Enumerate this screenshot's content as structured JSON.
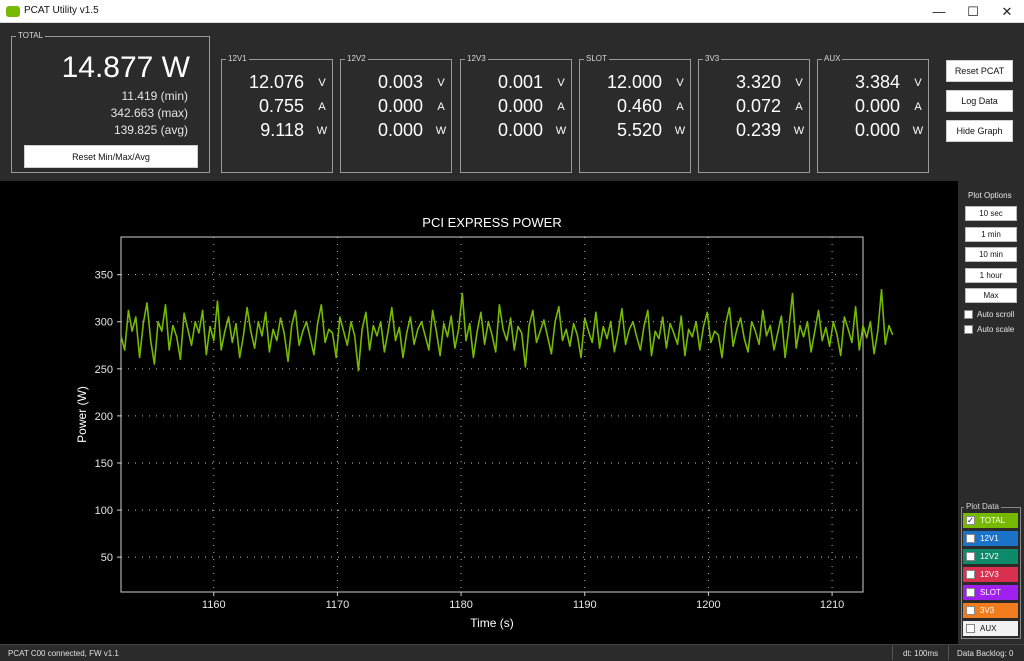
{
  "window": {
    "title": "PCAT Utility v1.5",
    "min_label": "—",
    "max_label": "☐",
    "close_label": "✕"
  },
  "total": {
    "label": "TOTAL",
    "power": "14.877 W",
    "min": "11.419 (min)",
    "max": "342.663 (max)",
    "avg": "139.825 (avg)",
    "reset_label": "Reset Min/Max/Avg"
  },
  "rails": [
    {
      "name": "12V1",
      "v": "12.076",
      "a": "0.755",
      "w": "9.118"
    },
    {
      "name": "12V2",
      "v": "0.003",
      "a": "0.000",
      "w": "0.000"
    },
    {
      "name": "12V3",
      "v": "0.001",
      "a": "0.000",
      "w": "0.000"
    },
    {
      "name": "SLOT",
      "v": "12.000",
      "a": "0.460",
      "w": "5.520"
    },
    {
      "name": "3V3",
      "v": "3.320",
      "a": "0.072",
      "w": "0.239"
    },
    {
      "name": "AUX",
      "v": "3.384",
      "a": "0.000",
      "w": "0.000"
    }
  ],
  "units": {
    "v": "V",
    "a": "A",
    "w": "W"
  },
  "actions": {
    "reset_pcat": "Reset PCAT",
    "log_data": "Log Data",
    "hide_graph": "Hide Graph"
  },
  "plot_options": {
    "title": "Plot Options",
    "buttons": [
      "10 sec",
      "1 min",
      "10 min",
      "1 hour",
      "Max"
    ],
    "auto_scroll": "Auto scroll",
    "auto_scale": "Auto scale"
  },
  "plot_data": {
    "title": "Plot Data",
    "items": [
      {
        "label": "TOTAL",
        "color": "#76b900",
        "checked": true,
        "text_color": "#ffffff"
      },
      {
        "label": "12V1",
        "color": "#1a73c8",
        "checked": false,
        "text_color": "#ffffff"
      },
      {
        "label": "12V2",
        "color": "#0e8a6a",
        "checked": false,
        "text_color": "#ffffff"
      },
      {
        "label": "12V3",
        "color": "#d9304f",
        "checked": false,
        "text_color": "#ffffff"
      },
      {
        "label": "SLOT",
        "color": "#a020f0",
        "checked": false,
        "text_color": "#ffffff"
      },
      {
        "label": "3V3",
        "color": "#f07c1e",
        "checked": false,
        "text_color": "#ffffff"
      },
      {
        "label": "AUX",
        "color": "#f2f2f2",
        "checked": false,
        "text_color": "#111111"
      }
    ]
  },
  "status": {
    "connection": "PCAT C00 connected, FW v1.1",
    "dt": "dt: 100ms",
    "backlog": "Data Backlog: 0"
  },
  "chart_data": {
    "type": "line",
    "title": "PCI EXPRESS POWER",
    "xlabel": "Time (s)",
    "ylabel": "Power (W)",
    "xlim": [
      1152.5,
      1212.5
    ],
    "ylim": [
      13,
      390
    ],
    "xticks": [
      1160,
      1170,
      1180,
      1190,
      1200,
      1210
    ],
    "yticks": [
      50,
      100,
      150,
      200,
      250,
      300,
      350
    ],
    "grid": true,
    "series": [
      {
        "color": "#76b900",
        "x_start": 1152.5,
        "x_step": 0.3,
        "values": [
          285,
          270,
          312,
          290,
          305,
          262,
          298,
          320,
          280,
          255,
          300,
          290,
          318,
          270,
          296,
          284,
          260,
          309,
          292,
          275,
          300,
          288,
          312,
          265,
          295,
          280,
          322,
          270,
          290,
          305,
          278,
          298,
          262,
          285,
          315,
          290,
          272,
          300,
          285,
          310,
          268,
          292,
          280,
          304,
          288,
          258,
          296,
          312,
          275,
          290,
          300,
          283,
          265,
          298,
          318,
          278,
          292,
          288,
          262,
          305,
          290,
          275,
          300,
          285,
          248,
          292,
          310,
          270,
          296,
          285,
          300,
          268,
          290,
          315,
          280,
          294,
          262,
          288,
          305,
          276,
          292,
          300,
          285,
          270,
          312,
          290,
          264,
          298,
          284,
          306,
          272,
          292,
          330,
          280,
          298,
          262,
          290,
          310,
          276,
          300,
          286,
          268,
          318,
          292,
          280,
          304,
          270,
          295,
          288,
          252,
          296,
          312,
          278,
          290,
          302,
          284,
          266,
          300,
          316,
          280,
          292,
          274,
          298,
          286,
          262,
          304,
          290,
          278,
          310,
          272,
          295,
          282,
          300,
          268,
          288,
          314,
          276,
          292,
          300,
          284,
          270,
          296,
          312,
          264,
          290,
          282,
          305,
          272,
          298,
          288,
          276,
          306,
          264,
          292,
          284,
          300,
          270,
          295,
          310,
          278,
          290,
          286,
          262,
          298,
          315,
          274,
          292,
          304,
          282,
          268,
          300,
          290,
          276,
          312,
          285,
          296,
          270,
          288,
          306,
          262,
          293,
          330,
          272,
          296,
          284,
          300,
          268,
          290,
          312,
          280,
          294,
          274,
          300,
          286,
          264,
          305,
          292,
          278,
          316,
          270,
          296,
          283,
          300,
          266,
          290,
          334,
          276,
          296,
          286
        ]
      }
    ]
  }
}
